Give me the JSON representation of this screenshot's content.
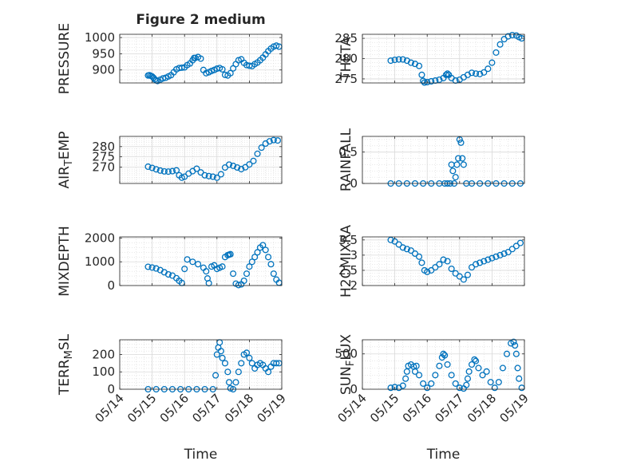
{
  "figure_title": "Figure 2 medium",
  "colors": {
    "marker": "#0072BD",
    "grid": "#d9d9d9",
    "axis": "#262626",
    "background": "#ffffff"
  },
  "x_axis": {
    "xlabel": "Time",
    "ticks": [
      "05/14",
      "05/15",
      "05/16",
      "05/17",
      "05/18",
      "05/19"
    ],
    "tick_dates": [
      "2023-05-14",
      "2023-05-15",
      "2023-05-16",
      "2023-05-17",
      "2023-05-18",
      "2023-05-19"
    ],
    "xlim": [
      "05/14",
      "05/19"
    ]
  },
  "chart_data": [
    {
      "type": "scatter",
      "title": "Figure 2 medium",
      "ylabel": "PRESSURE",
      "ylim": [
        860,
        1010
      ],
      "yticks": [
        "900",
        "950",
        "1000"
      ],
      "ytick_values": [
        900,
        950,
        1000
      ],
      "grid": true,
      "marker": "open-circle",
      "x": [
        "05/14 21:00",
        "05/14 22:00",
        "05/14 23:00",
        "05/15 00:00",
        "05/15 01:00",
        "05/15 02:00",
        "05/15 03:00",
        "05/15 04:00",
        "05/15 06:00",
        "05/15 08:00",
        "05/15 10:00",
        "05/15 12:00",
        "05/15 14:00",
        "05/15 16:00",
        "05/15 18:00",
        "05/15 20:00",
        "05/15 22:00",
        "05/16 00:00",
        "05/16 02:00",
        "05/16 04:00",
        "05/16 06:00",
        "05/16 07:00",
        "05/16 08:00",
        "05/16 10:00",
        "05/16 12:00",
        "05/16 14:00",
        "05/16 16:00",
        "05/16 18:00",
        "05/16 20:00",
        "05/16 22:00",
        "05/17 00:00",
        "05/17 02:00",
        "05/17 04:00",
        "05/17 06:00",
        "05/17 08:00",
        "05/17 10:00",
        "05/17 12:00",
        "05/17 14:00",
        "05/17 16:00",
        "05/17 18:00",
        "05/17 20:00",
        "05/17 22:00",
        "05/18 00:00",
        "05/18 02:00",
        "05/18 04:00",
        "05/18 06:00",
        "05/18 08:00",
        "05/18 10:00",
        "05/18 12:00",
        "05/18 14:00",
        "05/18 16:00",
        "05/18 18:00",
        "05/18 20:00",
        "05/18 22:00"
      ],
      "y": [
        883,
        884,
        882,
        880,
        876,
        871,
        868,
        866,
        870,
        874,
        876,
        880,
        884,
        893,
        902,
        906,
        907,
        908,
        915,
        920,
        930,
        937,
        937,
        940,
        935,
        900,
        890,
        893,
        897,
        900,
        904,
        906,
        902,
        885,
        883,
        890,
        905,
        918,
        930,
        933,
        922,
        915,
        913,
        912,
        918,
        923,
        930,
        938,
        948,
        958,
        966,
        972,
        975,
        972
      ]
    },
    {
      "type": "scatter",
      "title": "",
      "ylabel": "THETA",
      "ylim": [
        274,
        286
      ],
      "yticks": [
        "275",
        "280",
        "285"
      ],
      "ytick_values": [
        275,
        280,
        285
      ],
      "grid": true,
      "marker": "open-circle",
      "x": [
        "05/14 21:00",
        "05/15 00:00",
        "05/15 03:00",
        "05/15 06:00",
        "05/15 09:00",
        "05/15 12:00",
        "05/15 15:00",
        "05/15 18:00",
        "05/15 20:00",
        "05/15 21:00",
        "05/15 22:00",
        "05/16 00:00",
        "05/16 03:00",
        "05/16 06:00",
        "05/16 09:00",
        "05/16 12:00",
        "05/16 14:00",
        "05/16 15:00",
        "05/16 16:00",
        "05/16 18:00",
        "05/16 21:00",
        "05/17 00:00",
        "05/17 03:00",
        "05/17 06:00",
        "05/17 09:00",
        "05/17 12:00",
        "05/17 15:00",
        "05/17 18:00",
        "05/17 21:00",
        "05/18 00:00",
        "05/18 03:00",
        "05/18 06:00",
        "05/18 09:00",
        "05/18 12:00",
        "05/18 15:00",
        "05/18 18:00",
        "05/18 20:00",
        "05/18 22:00"
      ],
      "y": [
        279.5,
        279.7,
        279.8,
        279.8,
        279.5,
        279.0,
        278.7,
        278.2,
        276.0,
        274.5,
        274.1,
        274.2,
        274.4,
        274.6,
        274.8,
        275.2,
        276.0,
        276.3,
        276.0,
        275.2,
        274.6,
        274.8,
        275.4,
        276.0,
        276.5,
        276.3,
        276.2,
        276.6,
        277.5,
        279.0,
        281.5,
        283.5,
        284.8,
        285.5,
        285.8,
        285.7,
        285.3,
        285.0
      ]
    },
    {
      "type": "scatter",
      "title": "",
      "ylabel": "AIR_TEMP",
      "ylim": [
        262,
        285
      ],
      "yticks": [
        "270",
        "275",
        "280"
      ],
      "ytick_values": [
        270,
        275,
        280
      ],
      "grid": true,
      "marker": "open-circle",
      "x": [
        "05/14 21:00",
        "05/15 00:00",
        "05/15 03:00",
        "05/15 06:00",
        "05/15 09:00",
        "05/15 12:00",
        "05/15 15:00",
        "05/15 18:00",
        "05/15 20:00",
        "05/15 22:00",
        "05/16 00:00",
        "05/16 03:00",
        "05/16 06:00",
        "05/16 09:00",
        "05/16 12:00",
        "05/16 15:00",
        "05/16 18:00",
        "05/16 21:00",
        "05/17 00:00",
        "05/17 03:00",
        "05/17 06:00",
        "05/17 09:00",
        "05/17 12:00",
        "05/17 15:00",
        "05/17 18:00",
        "05/17 21:00",
        "05/18 00:00",
        "05/18 03:00",
        "05/18 06:00",
        "05/18 09:00",
        "05/18 12:00",
        "05/18 15:00",
        "05/18 18:00",
        "05/18 21:00"
      ],
      "y": [
        270.2,
        269.6,
        268.9,
        268.3,
        267.9,
        267.8,
        268.0,
        268.4,
        266.0,
        264.8,
        265.3,
        266.8,
        268.0,
        269.2,
        267.4,
        266.0,
        265.6,
        265.3,
        264.8,
        266.5,
        269.8,
        271.2,
        270.6,
        269.8,
        269.0,
        269.9,
        271.3,
        273.0,
        276.5,
        279.5,
        281.5,
        282.6,
        283.2,
        283.0
      ]
    },
    {
      "type": "scatter",
      "title": "",
      "ylabel": "RAINFALL",
      "ylim": [
        0,
        0.75
      ],
      "yticks": [
        "0",
        "0.5"
      ],
      "ytick_values": [
        0,
        0.5
      ],
      "grid": true,
      "marker": "open-circle",
      "x": [
        "05/14 21:00",
        "05/15 03:00",
        "05/15 09:00",
        "05/15 15:00",
        "05/15 21:00",
        "05/16 03:00",
        "05/16 09:00",
        "05/16 13:00",
        "05/16 15:00",
        "05/16 17:00",
        "05/16 18:00",
        "05/16 19:00",
        "05/16 20:00",
        "05/16 21:00",
        "05/16 22:00",
        "05/16 23:00",
        "05/17 00:00",
        "05/17 01:00",
        "05/17 02:00",
        "05/17 03:00",
        "05/17 05:00",
        "05/17 09:00",
        "05/17 15:00",
        "05/17 21:00",
        "05/18 03:00",
        "05/18 09:00",
        "05/18 15:00",
        "05/18 21:00"
      ],
      "y": [
        0,
        0,
        0,
        0,
        0,
        0,
        0,
        0,
        0,
        0,
        0.3,
        0.2,
        0,
        0.1,
        0.3,
        0.4,
        0.7,
        0.65,
        0.4,
        0.3,
        0,
        0,
        0,
        0,
        0,
        0,
        0,
        0
      ]
    },
    {
      "type": "scatter",
      "title": "",
      "ylabel": "MIXDEPTH",
      "ylim": [
        0,
        2050
      ],
      "yticks": [
        "0",
        "1000",
        "2000"
      ],
      "ytick_values": [
        0,
        1000,
        2000
      ],
      "grid": true,
      "marker": "open-circle",
      "x": [
        "05/14 21:00",
        "05/15 00:00",
        "05/15 03:00",
        "05/15 06:00",
        "05/15 09:00",
        "05/15 12:00",
        "05/15 15:00",
        "05/15 18:00",
        "05/15 20:00",
        "05/15 22:00",
        "05/16 00:00",
        "05/16 02:00",
        "05/16 06:00",
        "05/16 10:00",
        "05/16 14:00",
        "05/16 16:00",
        "05/16 17:00",
        "05/16 18:00",
        "05/16 20:00",
        "05/16 22:00",
        "05/17 00:00",
        "05/17 02:00",
        "05/17 04:00",
        "05/17 06:00",
        "05/17 08:00",
        "05/17 09:00",
        "05/17 10:00",
        "05/17 12:00",
        "05/17 14:00",
        "05/17 16:00",
        "05/17 18:00",
        "05/17 20:00",
        "05/17 22:00",
        "05/18 00:00",
        "05/18 02:00",
        "05/18 04:00",
        "05/18 06:00",
        "05/18 08:00",
        "05/18 10:00",
        "05/18 12:00",
        "05/18 14:00",
        "05/18 16:00",
        "05/18 18:00",
        "05/18 20:00",
        "05/18 22:00"
      ],
      "y": [
        790,
        760,
        720,
        650,
        560,
        470,
        420,
        310,
        200,
        110,
        700,
        1100,
        1000,
        900,
        750,
        600,
        300,
        100,
        800,
        850,
        700,
        750,
        800,
        1200,
        1280,
        1300,
        1320,
        500,
        80,
        20,
        50,
        200,
        500,
        800,
        1000,
        1200,
        1400,
        1600,
        1700,
        1500,
        1200,
        900,
        500,
        250,
        120
      ]
    },
    {
      "type": "scatter",
      "title": "",
      "ylabel": "H2OMIXRA",
      "ylim": [
        2,
        3.6
      ],
      "yticks": [
        "2",
        "2.5",
        "3",
        "3.5"
      ],
      "ytick_values": [
        2,
        2.5,
        3,
        3.5
      ],
      "grid": true,
      "marker": "open-circle",
      "x": [
        "05/14 21:00",
        "05/15 00:00",
        "05/15 03:00",
        "05/15 06:00",
        "05/15 09:00",
        "05/15 12:00",
        "05/15 15:00",
        "05/15 18:00",
        "05/15 20:00",
        "05/15 22:00",
        "05/16 00:00",
        "05/16 03:00",
        "05/16 06:00",
        "05/16 09:00",
        "05/16 12:00",
        "05/16 15:00",
        "05/16 18:00",
        "05/16 21:00",
        "05/17 00:00",
        "05/17 03:00",
        "05/17 06:00",
        "05/17 09:00",
        "05/17 12:00",
        "05/17 15:00",
        "05/17 18:00",
        "05/17 21:00",
        "05/18 00:00",
        "05/18 03:00",
        "05/18 06:00",
        "05/18 09:00",
        "05/18 12:00",
        "05/18 15:00",
        "05/18 18:00",
        "05/18 21:00"
      ],
      "y": [
        3.5,
        3.45,
        3.35,
        3.25,
        3.2,
        3.15,
        3.05,
        2.95,
        2.75,
        2.5,
        2.45,
        2.5,
        2.6,
        2.7,
        2.85,
        2.8,
        2.55,
        2.4,
        2.3,
        2.2,
        2.35,
        2.6,
        2.7,
        2.75,
        2.8,
        2.85,
        2.9,
        2.95,
        3.0,
        3.05,
        3.1,
        3.2,
        3.3,
        3.4
      ]
    },
    {
      "type": "scatter",
      "title": "",
      "ylabel": "TERR_MSL",
      "ylim": [
        0,
        285
      ],
      "yticks": [
        "0",
        "100",
        "200"
      ],
      "ytick_values": [
        0,
        100,
        200
      ],
      "grid": true,
      "marker": "open-circle",
      "x": [
        "05/14 21:00",
        "05/15 03:00",
        "05/15 09:00",
        "05/15 15:00",
        "05/15 21:00",
        "05/16 03:00",
        "05/16 09:00",
        "05/16 15:00",
        "05/16 21:00",
        "05/16 23:00",
        "05/17 00:00",
        "05/17 01:00",
        "05/17 02:00",
        "05/17 03:00",
        "05/17 04:00",
        "05/17 06:00",
        "05/17 08:00",
        "05/17 09:00",
        "05/17 10:00",
        "05/17 12:00",
        "05/17 14:00",
        "05/17 16:00",
        "05/17 18:00",
        "05/17 20:00",
        "05/17 22:00",
        "05/18 00:00",
        "05/18 02:00",
        "05/18 04:00",
        "05/18 06:00",
        "05/18 08:00",
        "05/18 10:00",
        "05/18 12:00",
        "05/18 14:00",
        "05/18 16:00",
        "05/18 18:00",
        "05/18 20:00",
        "05/18 22:00"
      ],
      "y": [
        0,
        0,
        0,
        0,
        0,
        0,
        0,
        0,
        0,
        80,
        200,
        240,
        270,
        220,
        180,
        150,
        100,
        40,
        5,
        0,
        40,
        100,
        150,
        200,
        210,
        180,
        150,
        120,
        140,
        150,
        140,
        120,
        100,
        130,
        150,
        150,
        150
      ]
    },
    {
      "type": "scatter",
      "title": "",
      "ylabel": "SUN_FLUX",
      "ylim": [
        0,
        700
      ],
      "yticks": [
        "0",
        "500"
      ],
      "ytick_values": [
        0,
        500
      ],
      "grid": true,
      "marker": "open-circle",
      "x": [
        "05/14 21:00",
        "05/15 00:00",
        "05/15 03:00",
        "05/15 06:00",
        "05/15 08:00",
        "05/15 09:00",
        "05/15 10:00",
        "05/15 12:00",
        "05/15 14:00",
        "05/15 15:00",
        "05/15 16:00",
        "05/15 18:00",
        "05/15 21:00",
        "05/16 00:00",
        "05/16 03:00",
        "05/16 06:00",
        "05/16 09:00",
        "05/16 11:00",
        "05/16 12:00",
        "05/16 13:00",
        "05/16 15:00",
        "05/16 18:00",
        "05/16 21:00",
        "05/17 00:00",
        "05/17 03:00",
        "05/17 05:00",
        "05/17 06:00",
        "05/17 07:00",
        "05/17 09:00",
        "05/17 11:00",
        "05/17 12:00",
        "05/17 14:00",
        "05/17 17:00",
        "05/17 20:00",
        "05/17 23:00",
        "05/18 02:00",
        "05/18 05:00",
        "05/18 08:00",
        "05/18 11:00",
        "05/18 14:00",
        "05/18 16:00",
        "05/18 17:00",
        "05/18 18:00",
        "05/18 19:00",
        "05/18 20:00",
        "05/18 22:00"
      ],
      "y": [
        20,
        30,
        20,
        50,
        150,
        250,
        330,
        350,
        320,
        250,
        330,
        200,
        80,
        20,
        80,
        200,
        330,
        450,
        500,
        480,
        350,
        200,
        80,
        20,
        10,
        60,
        150,
        250,
        350,
        420,
        400,
        300,
        200,
        250,
        100,
        20,
        100,
        300,
        500,
        650,
        670,
        620,
        500,
        300,
        150,
        20
      ]
    }
  ]
}
